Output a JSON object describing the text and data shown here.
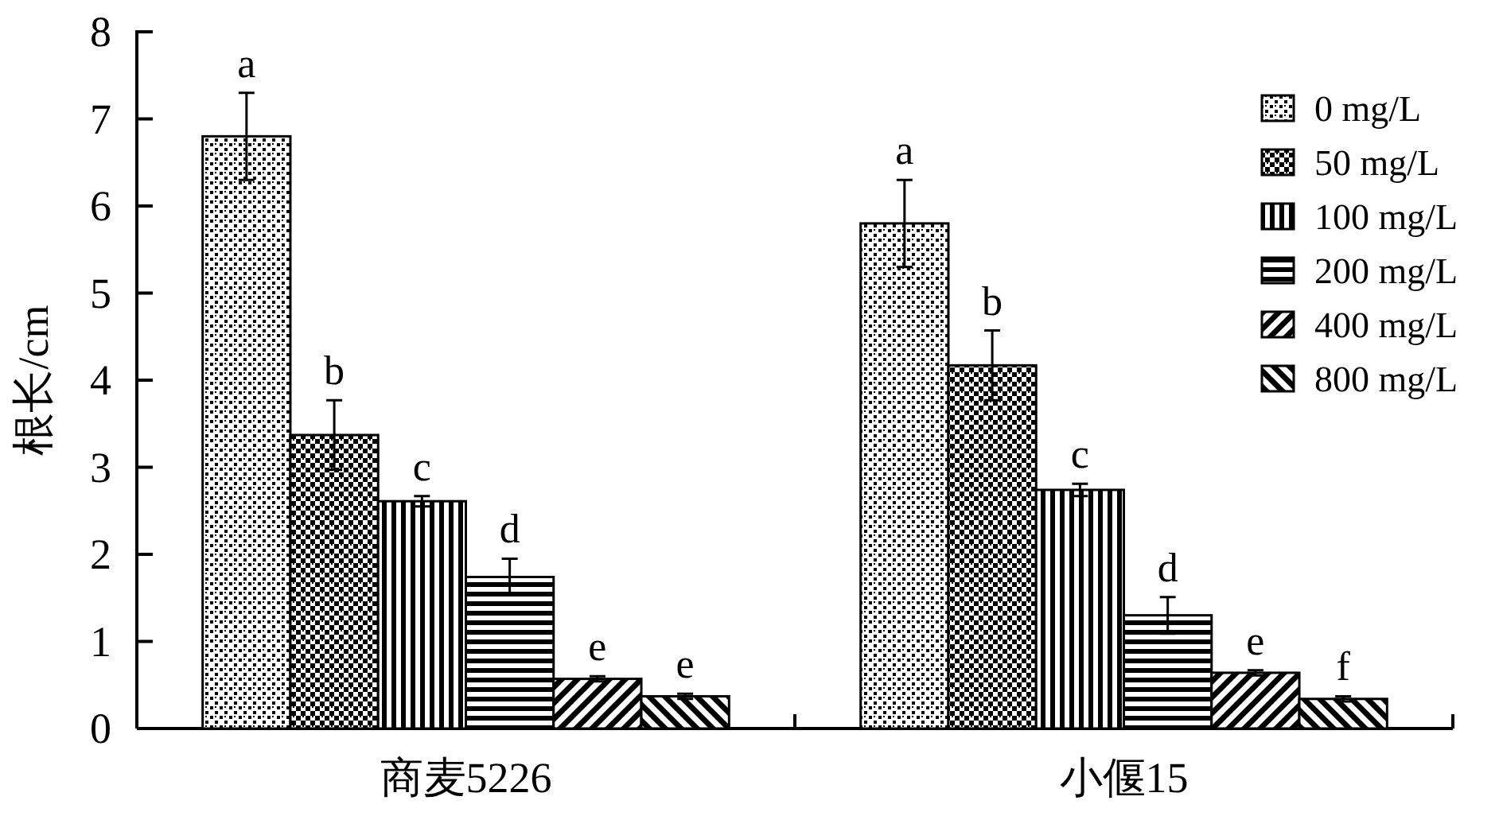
{
  "chart_data": {
    "type": "bar",
    "ylabel": "根长/cm",
    "categories": [
      "商麦5226",
      "小偃15"
    ],
    "series": [
      {
        "name": "0 mg/L",
        "color": "#000000",
        "values": [
          6.8,
          5.8
        ],
        "errors": [
          0.5,
          0.5
        ]
      },
      {
        "name": "50 mg/L",
        "color": "#000000",
        "values": [
          3.37,
          4.17
        ],
        "errors": [
          0.4,
          0.4
        ]
      },
      {
        "name": "100 mg/L",
        "color": "#000000",
        "values": [
          2.61,
          2.74
        ],
        "errors": [
          0.06,
          0.07
        ]
      },
      {
        "name": "200 mg/L",
        "color": "#000000",
        "values": [
          1.74,
          1.3
        ],
        "errors": [
          0.21,
          0.21
        ]
      },
      {
        "name": "400 mg/L",
        "color": "#000000",
        "values": [
          0.57,
          0.64
        ],
        "errors": [
          0.03,
          0.03
        ]
      },
      {
        "name": "800 mg/L",
        "color": "#000000",
        "values": [
          0.37,
          0.34
        ],
        "errors": [
          0.03,
          0.03
        ]
      }
    ],
    "annotations": [
      "a",
      "b",
      "c",
      "d",
      "e",
      "e",
      "a",
      "b",
      "c",
      "d",
      "e",
      "f"
    ],
    "ylim": [
      0,
      8
    ],
    "yticks": [
      0,
      1,
      2,
      3,
      4,
      5,
      6,
      7,
      8
    ],
    "grid": false,
    "legend": "top right"
  }
}
